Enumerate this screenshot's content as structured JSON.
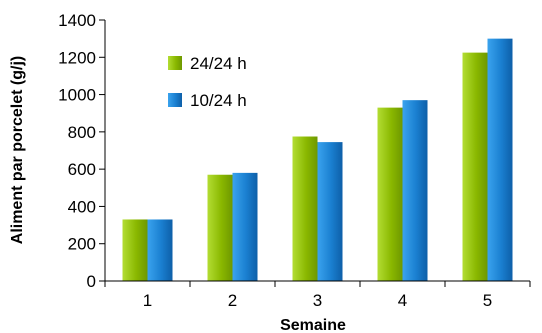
{
  "chart_data": {
    "type": "bar",
    "title": "",
    "xlabel": "Semaine",
    "ylabel": "Aliment par porcelet (g/j)",
    "categories": [
      "1",
      "2",
      "3",
      "4",
      "5"
    ],
    "ylim": [
      0,
      1400
    ],
    "yticks": [
      "0",
      "200",
      "400",
      "600",
      "800",
      "1000",
      "1200",
      "1400"
    ],
    "grid": false,
    "legend_position": "top-left",
    "series": [
      {
        "name": "24/24 h",
        "color": "#8ab800",
        "values": [
          330,
          570,
          775,
          930,
          1225
        ]
      },
      {
        "name": "10/24 h",
        "color": "#1a7fd0",
        "values": [
          330,
          580,
          745,
          970,
          1300
        ]
      }
    ]
  }
}
